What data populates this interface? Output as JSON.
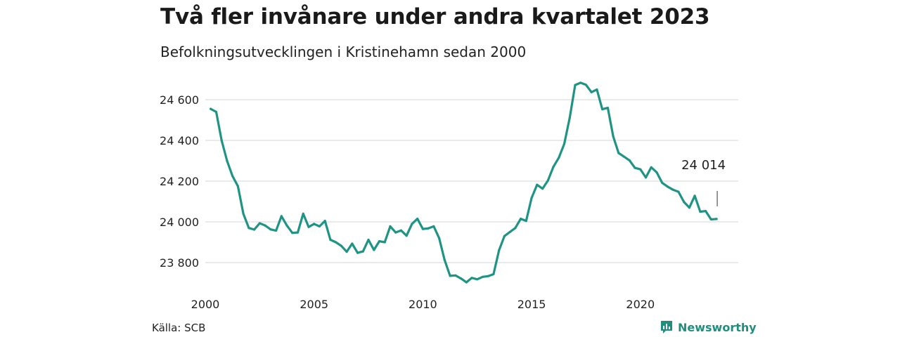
{
  "title": "Två fler invånare under andra kvartalet 2023",
  "subtitle": "Befolkningsutvecklingen i Kristinehamn sedan 2000",
  "source": "Källa: SCB",
  "brand": {
    "name": "Newsworthy",
    "icon": "bar-chart-icon",
    "color": "#1f8f7d"
  },
  "chart_data": {
    "type": "line",
    "x_ticks": [
      2000,
      2005,
      2010,
      2015,
      2020
    ],
    "x_tick_labels": [
      "2000",
      "2005",
      "2010",
      "2015",
      "2020"
    ],
    "y_ticks": [
      23800,
      24000,
      24200,
      24400,
      24600
    ],
    "y_tick_labels": [
      "23 800",
      "24 000",
      "24 200",
      "24 400",
      "24 600"
    ],
    "xlim": [
      2000,
      2024.5
    ],
    "ylim": [
      23700,
      24700
    ],
    "grid": true,
    "line_color": "#1f9485",
    "series": [
      {
        "x": [
          2000.25,
          2000.5,
          2000.75,
          2001,
          2001.25,
          2001.5,
          2001.75,
          2002,
          2002.25,
          2002.5,
          2002.75,
          2003,
          2003.25,
          2003.5,
          2003.75,
          2004,
          2004.25,
          2004.5,
          2004.75,
          2005,
          2005.25,
          2005.5,
          2005.75,
          2006,
          2006.25,
          2006.5,
          2006.75,
          2007,
          2007.25,
          2007.5,
          2007.75,
          2008,
          2008.25,
          2008.5,
          2008.75,
          2009,
          2009.25,
          2009.5,
          2009.75,
          2010,
          2010.25,
          2010.5,
          2010.75,
          2011,
          2011.25,
          2011.5,
          2011.75,
          2012,
          2012.25,
          2012.5,
          2012.75,
          2013,
          2013.25,
          2013.5,
          2013.75,
          2014,
          2014.25,
          2014.5,
          2014.75,
          2015,
          2015.25,
          2015.5,
          2015.75,
          2016,
          2016.25,
          2016.5,
          2016.75,
          2017,
          2017.25,
          2017.5,
          2017.75,
          2018,
          2018.25,
          2018.5,
          2018.75,
          2019,
          2019.25,
          2019.5,
          2019.75,
          2020,
          2020.25,
          2020.5,
          2020.75,
          2021,
          2021.25,
          2021.5,
          2021.75,
          2022,
          2022.25,
          2022.5,
          2022.75,
          2023,
          2023.25,
          2023.5
        ],
        "y": [
          24555,
          24540,
          24400,
          24300,
          24225,
          24175,
          24040,
          23970,
          23962,
          23993,
          23982,
          23963,
          23957,
          24028,
          23982,
          23946,
          23948,
          24040,
          23975,
          23990,
          23978,
          24005,
          23912,
          23900,
          23882,
          23853,
          23893,
          23848,
          23855,
          23912,
          23862,
          23905,
          23900,
          23978,
          23948,
          23958,
          23932,
          23990,
          24015,
          23965,
          23968,
          23978,
          23920,
          23813,
          23735,
          23737,
          23722,
          23703,
          23725,
          23718,
          23730,
          23733,
          23743,
          23860,
          23930,
          23950,
          23970,
          24015,
          24005,
          24118,
          24182,
          24163,
          24203,
          24270,
          24315,
          24383,
          24510,
          24672,
          24683,
          24673,
          24637,
          24650,
          24553,
          24560,
          24420,
          24338,
          24320,
          24302,
          24265,
          24258,
          24218,
          24268,
          24243,
          24192,
          24173,
          24158,
          24148,
          24098,
          24070,
          24128,
          24050,
          24053,
          24012,
          24014
        ]
      }
    ],
    "annotation": {
      "text": "24 014",
      "x": 2023.5,
      "y": 24014
    }
  }
}
